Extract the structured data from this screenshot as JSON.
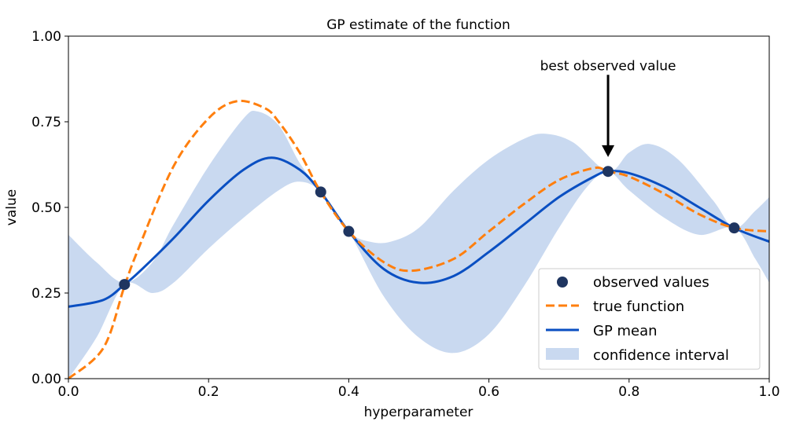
{
  "chart_data": {
    "type": "line",
    "title": "GP estimate of the function",
    "xlabel": "hyperparameter",
    "ylabel": "value",
    "xlim": [
      0,
      1
    ],
    "ylim": [
      0,
      1
    ],
    "xticks": [
      "0.0",
      "0.2",
      "0.4",
      "0.6",
      "0.8",
      "1.0"
    ],
    "yticks": [
      "0.00",
      "0.25",
      "0.50",
      "0.75",
      "1.00"
    ],
    "grid": false,
    "legend_position": "lower-right",
    "colors": {
      "observed": "#1f3560",
      "true": "#ff7f0e",
      "mean": "#0a4fc2",
      "ci": "#c9d9f0"
    },
    "observed": {
      "name": "observed values",
      "x": [
        0.08,
        0.36,
        0.4,
        0.77,
        0.95
      ],
      "y": [
        0.275,
        0.545,
        0.43,
        0.605,
        0.44
      ]
    },
    "true_function": {
      "name": "true function",
      "x": [
        0,
        0.05,
        0.08,
        0.1,
        0.15,
        0.2,
        0.24,
        0.28,
        0.3,
        0.33,
        0.36,
        0.4,
        0.45,
        0.49,
        0.55,
        0.6,
        0.65,
        0.7,
        0.75,
        0.77,
        0.8,
        0.85,
        0.9,
        0.95,
        1.0
      ],
      "y": [
        0.0,
        0.09,
        0.27,
        0.38,
        0.62,
        0.76,
        0.81,
        0.79,
        0.75,
        0.66,
        0.545,
        0.43,
        0.34,
        0.315,
        0.35,
        0.43,
        0.51,
        0.58,
        0.615,
        0.605,
        0.59,
        0.54,
        0.48,
        0.44,
        0.43
      ]
    },
    "gp_mean": {
      "name": "GP mean",
      "x": [
        0,
        0.05,
        0.08,
        0.1,
        0.15,
        0.2,
        0.25,
        0.29,
        0.33,
        0.36,
        0.4,
        0.45,
        0.5,
        0.55,
        0.6,
        0.65,
        0.7,
        0.75,
        0.77,
        0.8,
        0.85,
        0.9,
        0.95,
        1.0
      ],
      "y": [
        0.21,
        0.23,
        0.275,
        0.31,
        0.41,
        0.52,
        0.61,
        0.645,
        0.61,
        0.545,
        0.43,
        0.32,
        0.28,
        0.3,
        0.37,
        0.45,
        0.53,
        0.59,
        0.605,
        0.6,
        0.56,
        0.5,
        0.44,
        0.4
      ]
    },
    "confidence_interval": {
      "name": "confidence interval",
      "upper": {
        "x": [
          0,
          0.04,
          0.08,
          0.12,
          0.15,
          0.2,
          0.25,
          0.27,
          0.3,
          0.33,
          0.36,
          0.4,
          0.43,
          0.46,
          0.5,
          0.55,
          0.6,
          0.65,
          0.68,
          0.72,
          0.77,
          0.8,
          0.83,
          0.87,
          0.92,
          0.95,
          0.98,
          1.0
        ],
        "y": [
          0.42,
          0.34,
          0.28,
          0.34,
          0.45,
          0.62,
          0.76,
          0.78,
          0.74,
          0.63,
          0.545,
          0.43,
          0.4,
          0.4,
          0.44,
          0.55,
          0.64,
          0.7,
          0.715,
          0.69,
          0.605,
          0.66,
          0.685,
          0.64,
          0.52,
          0.44,
          0.49,
          0.53
        ]
      },
      "lower": {
        "x": [
          0,
          0.04,
          0.08,
          0.12,
          0.15,
          0.2,
          0.25,
          0.3,
          0.33,
          0.36,
          0.4,
          0.45,
          0.5,
          0.55,
          0.6,
          0.65,
          0.7,
          0.74,
          0.77,
          0.8,
          0.85,
          0.9,
          0.95,
          0.98,
          1.0
        ],
        "y": [
          0.0,
          0.12,
          0.275,
          0.25,
          0.28,
          0.38,
          0.47,
          0.55,
          0.575,
          0.545,
          0.43,
          0.24,
          0.12,
          0.075,
          0.13,
          0.27,
          0.44,
          0.56,
          0.605,
          0.55,
          0.47,
          0.42,
          0.44,
          0.35,
          0.28
        ]
      }
    },
    "annotation": {
      "text": "best observed value",
      "xy": [
        0.77,
        0.647
      ],
      "xytext": [
        0.77,
        0.887
      ]
    }
  }
}
